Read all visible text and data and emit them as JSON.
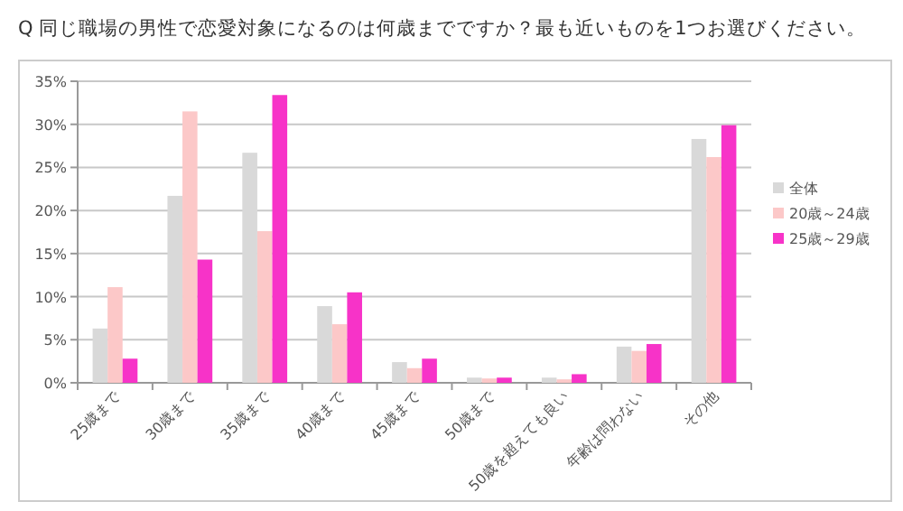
{
  "chart_data": {
    "type": "bar",
    "title": "Q 同じ職場の男性で恋愛対象になるのは何歳までですか？最も近いものを1つお選びください。",
    "categories": [
      "25歳まで",
      "30歳まで",
      "35歳まで",
      "40歳まで",
      "45歳まで",
      "50歳まで",
      "50歳を超えても良い",
      "年齢は問わない",
      "その他"
    ],
    "series": [
      {
        "name": "全体",
        "color": "#d9d9d9",
        "values": [
          6.3,
          21.7,
          26.7,
          8.9,
          2.4,
          0.6,
          0.6,
          4.2,
          28.3
        ]
      },
      {
        "name": "20歳～24歳",
        "color": "#fcc8c8",
        "values": [
          11.1,
          31.5,
          17.6,
          6.8,
          1.7,
          0.5,
          0.4,
          3.7,
          26.2
        ]
      },
      {
        "name": "25歳～29歳",
        "color": "#f733c8",
        "values": [
          2.8,
          14.3,
          33.4,
          10.5,
          2.8,
          0.6,
          1.0,
          4.5,
          29.9
        ]
      }
    ],
    "ylim": [
      0,
      35
    ],
    "yticks": [
      {
        "value": 0,
        "label": "0%"
      },
      {
        "value": 5,
        "label": "5%"
      },
      {
        "value": 10,
        "label": "10%"
      },
      {
        "value": 15,
        "label": "15%"
      },
      {
        "value": 20,
        "label": "20%"
      },
      {
        "value": 25,
        "label": "25%"
      },
      {
        "value": 30,
        "label": "30%"
      },
      {
        "value": 35,
        "label": "35%"
      }
    ],
    "grid": "y",
    "legend": "right"
  }
}
